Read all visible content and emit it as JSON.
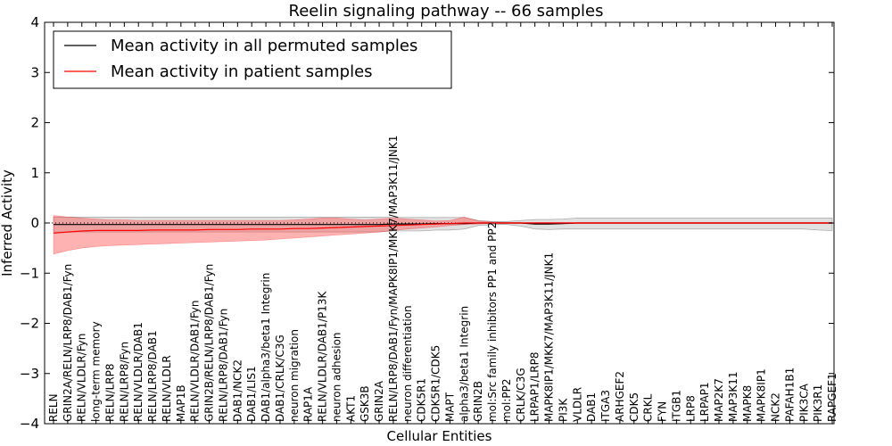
{
  "chart_data": {
    "type": "line",
    "title": "Reelin signaling pathway -- 66 samples",
    "xlabel": "Cellular Entities",
    "ylabel": "Inferred Activity",
    "ylim": [
      -4,
      4
    ],
    "yticks": [
      -4,
      -3,
      -2,
      -1,
      0,
      1,
      2,
      3,
      4
    ],
    "legend_position": "top-left",
    "reference_line": {
      "y": 0,
      "style": "dotted"
    },
    "categories": [
      "RELN",
      "GRIN2A/RELN/LRP8/DAB1/Fyn",
      "RELN/VLDLR/Fyn",
      "long-term memory",
      "RELN/LRP8",
      "RELN/LRP8/Fyn",
      "RELN/VLDLR/DAB1",
      "RELN/LRP8/DAB1",
      "RELN/VLDLR",
      "MAP1B",
      "RELN/VLDLR/DAB1/Fyn",
      "GRIN2B/RELN/LRP8/DAB1/Fyn",
      "RELN/LRP8/DAB1/Fyn",
      "DAB1/NCK2",
      "DAB1/LIS1",
      "DAB1/alpha3/beta1 Integrin",
      "DAB1/CRLK/C3G",
      "neuron migration",
      "RAP1A",
      "RELN/VLDLR/DAB1/P13K",
      "neuron adhesion",
      "AKT1",
      "GSK3B",
      "GRIN2A",
      "RELN/LRP8/DAB1/Fyn/MAPK8IP1/MKK7/MAP3K11/JNK1",
      "neuron differentiation",
      "CDK5R1",
      "CDK5R1/CDK5",
      "MAPT",
      "alpha3/beta1 Integrin",
      "GRIN2B",
      "mol:Src family inhibitors PP1 and PP2",
      "mol:PP2",
      "CRLK/C3G",
      "LRPAP1/LRP8",
      "MAPK8IP1/MKK7/MAP3K11/JNK1",
      "PI3K",
      "VLDLR",
      "DAB1",
      "ITGA3",
      "ARHGEF2",
      "CDK5",
      "CRKL",
      "FYN",
      "ITGB1",
      "LRP8",
      "LRPAP1",
      "MAP2K7",
      "MAP3K11",
      "MAPK8",
      "MAPK8IP1",
      "NCK2",
      "PAFAH1B1",
      "PIK3CA",
      "PIK3R1",
      "RAPGEF1"
    ],
    "series": [
      {
        "name": "Mean activity in all permuted samples",
        "color": "#000000",
        "values": [
          -0.03,
          -0.03,
          -0.03,
          -0.03,
          -0.03,
          -0.03,
          -0.03,
          -0.03,
          -0.03,
          -0.03,
          -0.03,
          -0.03,
          -0.03,
          -0.03,
          -0.03,
          -0.03,
          -0.03,
          -0.03,
          -0.03,
          -0.03,
          -0.03,
          -0.03,
          -0.03,
          -0.03,
          -0.02,
          -0.02,
          -0.02,
          -0.01,
          -0.01,
          -0.01,
          0.0,
          0.0,
          0.0,
          0.0,
          -0.02,
          -0.02,
          -0.01,
          0.0,
          0.0,
          0.0,
          0.0,
          0.0,
          0.0,
          0.0,
          0.0,
          0.0,
          0.0,
          0.0,
          0.0,
          0.0,
          0.0,
          0.0,
          0.0,
          0.0,
          0.0,
          0.0
        ],
        "band_upper": [
          0.12,
          0.12,
          0.12,
          0.12,
          0.12,
          0.12,
          0.12,
          0.12,
          0.12,
          0.12,
          0.12,
          0.12,
          0.12,
          0.12,
          0.12,
          0.12,
          0.12,
          0.12,
          0.12,
          0.12,
          0.12,
          0.12,
          0.12,
          0.12,
          0.11,
          0.11,
          0.11,
          0.11,
          0.11,
          0.11,
          0.05,
          0.03,
          0.03,
          0.05,
          0.07,
          0.07,
          0.08,
          0.1,
          0.1,
          0.1,
          0.1,
          0.1,
          0.1,
          0.1,
          0.1,
          0.1,
          0.1,
          0.1,
          0.1,
          0.1,
          0.1,
          0.1,
          0.1,
          0.1,
          0.1,
          0.1
        ],
        "band_lower": [
          -0.18,
          -0.18,
          -0.18,
          -0.18,
          -0.18,
          -0.18,
          -0.18,
          -0.18,
          -0.18,
          -0.18,
          -0.18,
          -0.18,
          -0.18,
          -0.18,
          -0.18,
          -0.18,
          -0.18,
          -0.18,
          -0.18,
          -0.18,
          -0.18,
          -0.18,
          -0.18,
          -0.18,
          -0.16,
          -0.16,
          -0.16,
          -0.14,
          -0.14,
          -0.12,
          -0.05,
          -0.03,
          -0.03,
          -0.06,
          -0.12,
          -0.13,
          -0.12,
          -0.12,
          -0.12,
          -0.12,
          -0.12,
          -0.12,
          -0.12,
          -0.12,
          -0.12,
          -0.12,
          -0.12,
          -0.12,
          -0.12,
          -0.12,
          -0.12,
          -0.12,
          -0.12,
          -0.12,
          -0.14,
          -0.15
        ]
      },
      {
        "name": "Mean activity in patient samples",
        "color": "#ff0000",
        "values": [
          -0.2,
          -0.18,
          -0.16,
          -0.15,
          -0.15,
          -0.15,
          -0.15,
          -0.14,
          -0.14,
          -0.14,
          -0.14,
          -0.13,
          -0.13,
          -0.13,
          -0.12,
          -0.12,
          -0.12,
          -0.11,
          -0.11,
          -0.1,
          -0.09,
          -0.08,
          -0.07,
          -0.06,
          -0.05,
          -0.04,
          -0.03,
          -0.02,
          -0.01,
          0.0,
          0.0,
          0.0,
          0.0,
          0.0,
          0.0,
          0.0,
          0.0,
          0.0,
          0.0,
          0.0,
          0.0,
          0.0,
          0.0,
          0.0,
          0.0,
          0.0,
          0.0,
          0.0,
          0.0,
          0.0,
          0.0,
          0.0,
          0.0,
          0.0,
          0.0,
          0.0
        ],
        "band_upper": [
          0.15,
          0.12,
          0.1,
          0.08,
          0.06,
          0.06,
          0.05,
          0.05,
          0.05,
          0.05,
          0.05,
          0.05,
          0.05,
          0.05,
          0.05,
          0.05,
          0.05,
          0.06,
          0.08,
          0.1,
          0.1,
          0.08,
          0.06,
          0.08,
          0.1,
          0.08,
          0.06,
          0.04,
          0.05,
          0.12,
          0.04,
          0.02,
          0.01,
          0.01,
          0.01,
          0.01,
          0.01,
          0.01,
          0.01,
          0.01,
          0.01,
          0.01,
          0.01,
          0.01,
          0.01,
          0.01,
          0.01,
          0.01,
          0.01,
          0.01,
          0.01,
          0.01,
          0.01,
          0.01,
          0.01,
          0.01
        ],
        "band_lower": [
          -0.62,
          -0.55,
          -0.5,
          -0.47,
          -0.45,
          -0.44,
          -0.43,
          -0.42,
          -0.41,
          -0.4,
          -0.39,
          -0.38,
          -0.37,
          -0.36,
          -0.35,
          -0.34,
          -0.32,
          -0.3,
          -0.28,
          -0.26,
          -0.24,
          -0.22,
          -0.2,
          -0.18,
          -0.15,
          -0.12,
          -0.1,
          -0.08,
          -0.05,
          -0.03,
          -0.02,
          -0.01,
          -0.01,
          -0.01,
          -0.01,
          -0.01,
          -0.01,
          -0.01,
          -0.01,
          -0.01,
          -0.01,
          -0.01,
          -0.01,
          -0.01,
          -0.01,
          -0.01,
          -0.01,
          -0.01,
          -0.01,
          -0.01,
          -0.01,
          -0.01,
          -0.01,
          -0.01,
          -0.01,
          -0.01
        ]
      }
    ]
  }
}
